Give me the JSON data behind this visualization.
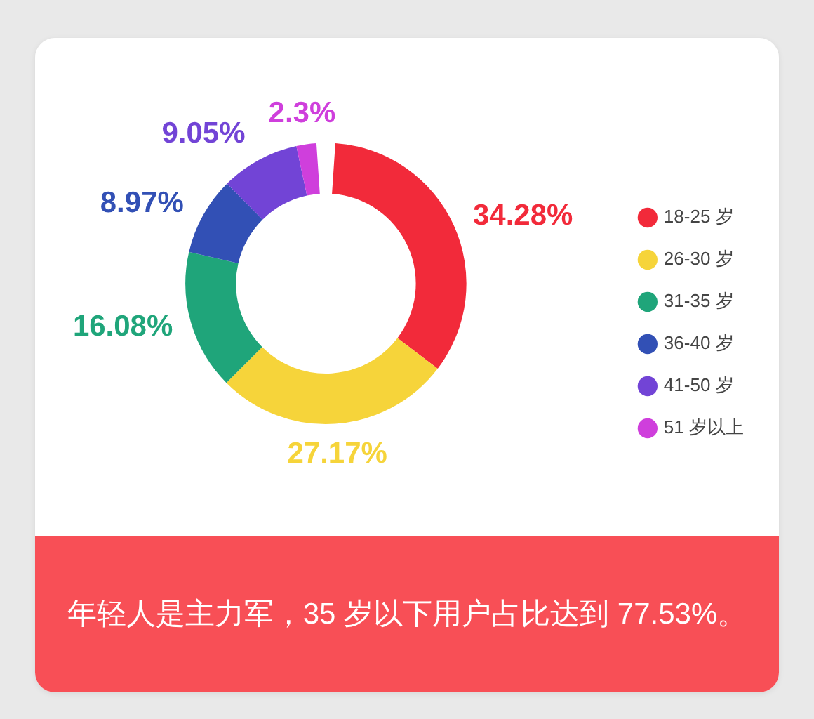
{
  "chart_data": {
    "type": "donut",
    "categories": [
      "18-25 岁",
      "26-30 岁",
      "31-35 岁",
      "36-40 岁",
      "41-50 岁",
      "51 岁以上"
    ],
    "values": [
      34.28,
      27.17,
      16.08,
      8.97,
      9.05,
      2.3
    ],
    "colors": [
      "#f22a3a",
      "#f6d43a",
      "#1fa57a",
      "#3250b5",
      "#7244d6",
      "#cf3fdc"
    ],
    "value_labels": [
      "34.28%",
      "27.17%",
      "16.08%",
      "8.97%",
      "9.05%",
      "2.3%"
    ],
    "legend": "right",
    "annotations": [
      "年轻人是主力军，35 岁以下用户占比达到 77.53%。"
    ]
  }
}
